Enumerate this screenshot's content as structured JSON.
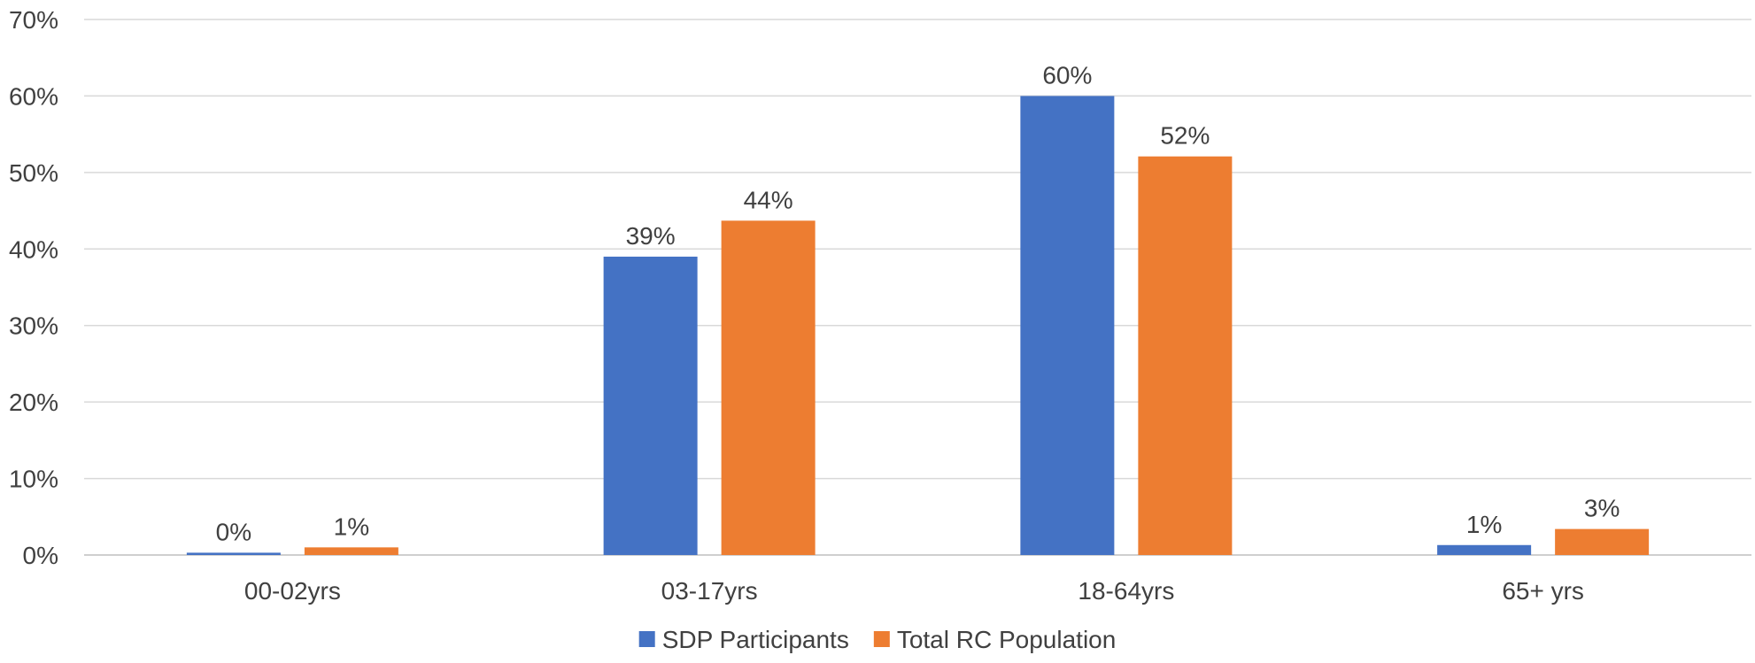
{
  "chart_data": {
    "type": "bar",
    "title": "",
    "xlabel": "",
    "ylabel": "",
    "categories": [
      "00-02yrs",
      "03-17yrs",
      "18-64yrs",
      "65+ yrs"
    ],
    "ylim": [
      0,
      70
    ],
    "yticks": [
      0,
      10,
      20,
      30,
      40,
      50,
      60,
      70
    ],
    "ytick_format": "%",
    "grid": true,
    "legend_position": "bottom",
    "series": [
      {
        "name": "SDP Participants",
        "color": "#4472C4",
        "values": [
          0.3,
          39,
          60,
          1.3
        ],
        "labels": [
          "0%",
          "39%",
          "60%",
          "1%"
        ]
      },
      {
        "name": "Total RC Population",
        "color": "#ED7D31",
        "values": [
          1,
          43.7,
          52.1,
          3.4
        ],
        "labels": [
          "1%",
          "44%",
          "52%",
          "3%"
        ]
      }
    ]
  }
}
